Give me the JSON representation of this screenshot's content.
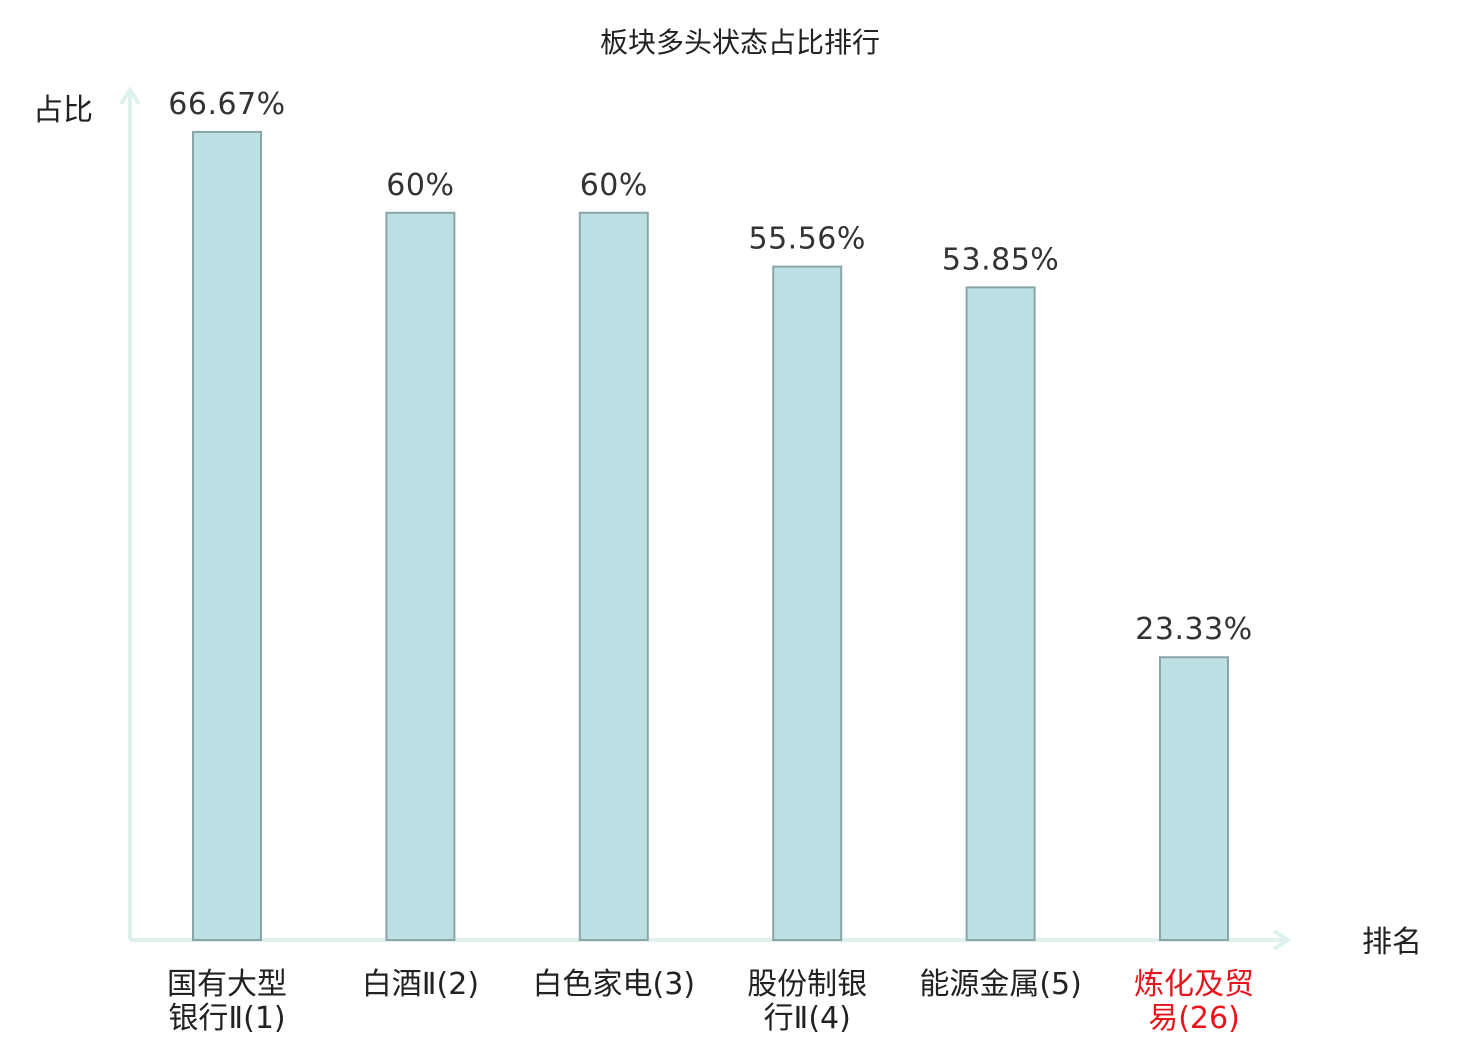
{
  "chart_data": {
    "type": "bar",
    "title": "板块多头状态占比排行",
    "ylabel": "占比",
    "xlabel": "排名",
    "categories": [
      {
        "lines": [
          "国有大型",
          "银行Ⅱ(1)"
        ],
        "highlight": false
      },
      {
        "lines": [
          "白酒Ⅱ(2)"
        ],
        "highlight": false
      },
      {
        "lines": [
          "白色家电(3)"
        ],
        "highlight": false
      },
      {
        "lines": [
          "股份制银",
          "行Ⅱ(4)"
        ],
        "highlight": false
      },
      {
        "lines": [
          "能源金属(5)"
        ],
        "highlight": false
      },
      {
        "lines": [
          "炼化及贸",
          "易(26)"
        ],
        "highlight": true
      }
    ],
    "values": [
      66.67,
      60,
      60,
      55.56,
      53.85,
      23.33
    ],
    "value_labels": [
      "66.67%",
      "60%",
      "60%",
      "55.56%",
      "53.85%",
      "23.33%"
    ],
    "ylim": [
      0,
      70
    ],
    "grid": false,
    "legend": "none"
  },
  "colors": {
    "bar_fill": "#bce0e3",
    "bar_stroke": "#8aa5a8",
    "axis": "#dff1ee",
    "highlight_text": "#e8141b"
  }
}
